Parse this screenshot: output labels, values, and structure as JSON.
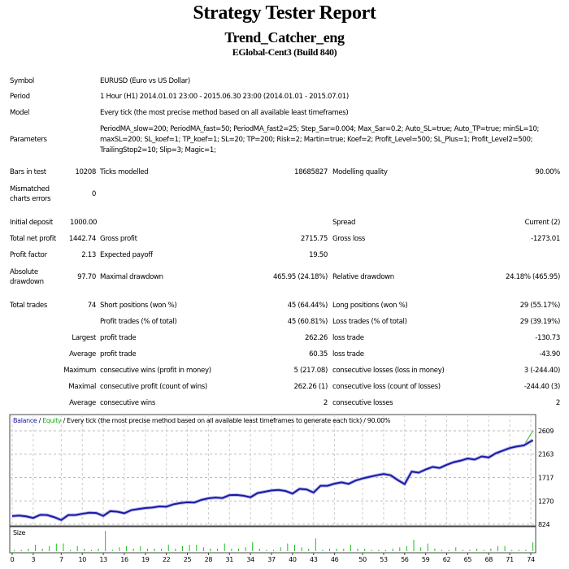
{
  "header": {
    "title": "Strategy Tester Report",
    "expert": "Trend_Catcher_eng",
    "server": "EGlobal-Cent3 (Build 840)"
  },
  "info": {
    "symbol_label": "Symbol",
    "symbol": "EURUSD (Euro vs US Dollar)",
    "period_label": "Period",
    "period": "1 Hour (H1) 2014.01.01 23:00 - 2015.06.30 23:00 (2014.01.01 - 2015.07.01)",
    "model_label": "Model",
    "model": "Every tick (the most precise method based on all available least timeframes)",
    "parameters_label": "Parameters",
    "parameters_lines": [
      "PeriodMA_slow=200; PeriodMA_fast=50; PeriodMA_fast2=25; Step_Sar=0.004; Max_Sar=0.2; Auto_SL=true; Auto_TP=true; minSL=10;",
      "maxSL=200; SL_koef=1; TP_koef=1; SL=20; TP=200; Risk=2; Martin=true; Koef=2; Profit_Level=500; SL_Plus=1; Profit_Level2=500;",
      "TrailingStop2=10; Slip=3; Magic=1;"
    ]
  },
  "rows": [
    {
      "l1": "Bars in test",
      "v1": "10208",
      "l2": "Ticks modelled",
      "v2": "18685827",
      "l3": "Modelling quality",
      "v3": "90.00%"
    },
    {
      "l1": "Mismatched charts errors",
      "v1": "0"
    },
    {
      "l1": "Initial deposit",
      "v1": "1000.00",
      "l3": "Spread",
      "v3": "Current (2)",
      "v1left": true
    },
    {
      "l1": "Total net profit",
      "v1": "1442.74",
      "l2": "Gross profit",
      "v2": "2715.75",
      "l3": "Gross loss",
      "v3": "-1273.01"
    },
    {
      "l1": "Profit factor",
      "v1": "2.13",
      "l2": "Expected payoff",
      "v2": "19.50"
    },
    {
      "l1": "Absolute drawdown",
      "v1": "97.70",
      "l2": "Maximal drawdown",
      "v2": "465.95 (24.18%)",
      "l3": "Relative drawdown",
      "v3": "24.18% (465.95)"
    },
    {
      "l1": "Total trades",
      "v1": "74",
      "l2": "Short positions (won %)",
      "v2": "45 (64.44%)",
      "l3": "Long positions (won %)",
      "v3": "29 (55.17%)"
    },
    {
      "l2": "Profit trades (% of total)",
      "v2": "45 (60.81%)",
      "l3": "Loss trades (% of total)",
      "v3": "29 (39.19%)"
    },
    {
      "v1": "Largest",
      "l2": "profit trade",
      "v2": "262.26",
      "l3": "loss trade",
      "v3": "-130.73"
    },
    {
      "v1": "Average",
      "l2": "profit trade",
      "v2": "60.35",
      "l3": "loss trade",
      "v3": "-43.90"
    },
    {
      "v1": "Maximum",
      "l2": "consecutive wins (profit in money)",
      "v2": "5 (217.08)",
      "l3": "consecutive losses (loss in money)",
      "v3": "3 (-244.40)"
    },
    {
      "v1": "Maximal",
      "l2": "consecutive profit (count of wins)",
      "v2": "262.26 (1)",
      "l3": "consecutive loss (count of losses)",
      "v3": "-244.40 (3)"
    },
    {
      "v1": "Average",
      "l2": "consecutive wins",
      "v2": "2",
      "l3": "consecutive losses",
      "v3": "2"
    }
  ],
  "chart_legend": {
    "balance": "Balance",
    "sep1": " / ",
    "equity": "Equity",
    "rest": " / Every tick (the most precise method based on all available least timeframes to generate each tick) / 90.00%"
  },
  "chart_data": {
    "type": "line",
    "x_ticks": [
      0,
      3,
      7,
      10,
      13,
      16,
      19,
      22,
      25,
      28,
      31,
      34,
      37,
      40,
      43,
      46,
      50,
      53,
      56,
      59,
      62,
      65,
      68,
      71,
      74
    ],
    "y_ticks": [
      824,
      1270,
      1717,
      2163,
      2609
    ],
    "ylim": [
      824,
      2609
    ],
    "grid": true,
    "series": [
      {
        "name": "Balance",
        "color": "#1a1aa6",
        "values": [
          981,
          990,
          975,
          945,
          1005,
          1000,
          960,
          905,
          1000,
          1000,
          1025,
          1045,
          1040,
          985,
          1075,
          1065,
          1035,
          1095,
          1115,
          1135,
          1145,
          1165,
          1160,
          1205,
          1230,
          1245,
          1240,
          1290,
          1320,
          1335,
          1325,
          1380,
          1385,
          1370,
          1340,
          1420,
          1445,
          1470,
          1480,
          1460,
          1410,
          1500,
          1490,
          1430,
          1560,
          1560,
          1600,
          1625,
          1595,
          1660,
          1700,
          1730,
          1760,
          1785,
          1760,
          1670,
          1590,
          1830,
          1810,
          1870,
          1920,
          1900,
          1960,
          2010,
          2040,
          2080,
          2060,
          2120,
          2100,
          2180,
          2230,
          2280,
          2310,
          2330,
          2430
        ]
      },
      {
        "name": "Equity",
        "color": "#22bb22",
        "values": [
          981,
          990,
          975,
          945,
          1005,
          1000,
          960,
          905,
          1000,
          1000,
          1025,
          1045,
          1040,
          985,
          1075,
          1065,
          1035,
          1095,
          1115,
          1135,
          1145,
          1165,
          1160,
          1205,
          1230,
          1245,
          1240,
          1290,
          1320,
          1335,
          1325,
          1390,
          1395,
          1370,
          1340,
          1420,
          1445,
          1470,
          1480,
          1460,
          1410,
          1500,
          1490,
          1430,
          1560,
          1560,
          1600,
          1625,
          1595,
          1660,
          1700,
          1730,
          1760,
          1785,
          1760,
          1670,
          1590,
          1830,
          1810,
          1870,
          1920,
          1900,
          1960,
          2010,
          2040,
          2080,
          2060,
          2120,
          2100,
          2180,
          2230,
          2280,
          2310,
          2330,
          2609
        ]
      }
    ],
    "size_panel": {
      "label": "Size",
      "color": "#22bb22",
      "values": [
        1,
        1,
        2,
        5,
        2,
        4,
        6,
        6,
        1,
        4,
        2,
        1,
        2,
        16,
        1,
        3,
        4,
        2,
        4,
        2,
        2,
        2,
        5,
        2,
        4,
        5,
        5,
        3,
        2,
        2,
        6,
        2,
        2,
        3,
        7,
        2,
        1,
        1,
        3,
        6,
        5,
        3,
        2,
        10,
        1,
        2,
        2,
        2,
        5,
        2,
        2,
        1,
        1,
        1,
        2,
        3,
        4,
        9,
        3,
        6,
        2,
        1,
        1,
        3,
        1,
        1,
        2,
        1,
        2,
        4,
        4,
        1,
        1,
        1,
        7
      ]
    }
  }
}
